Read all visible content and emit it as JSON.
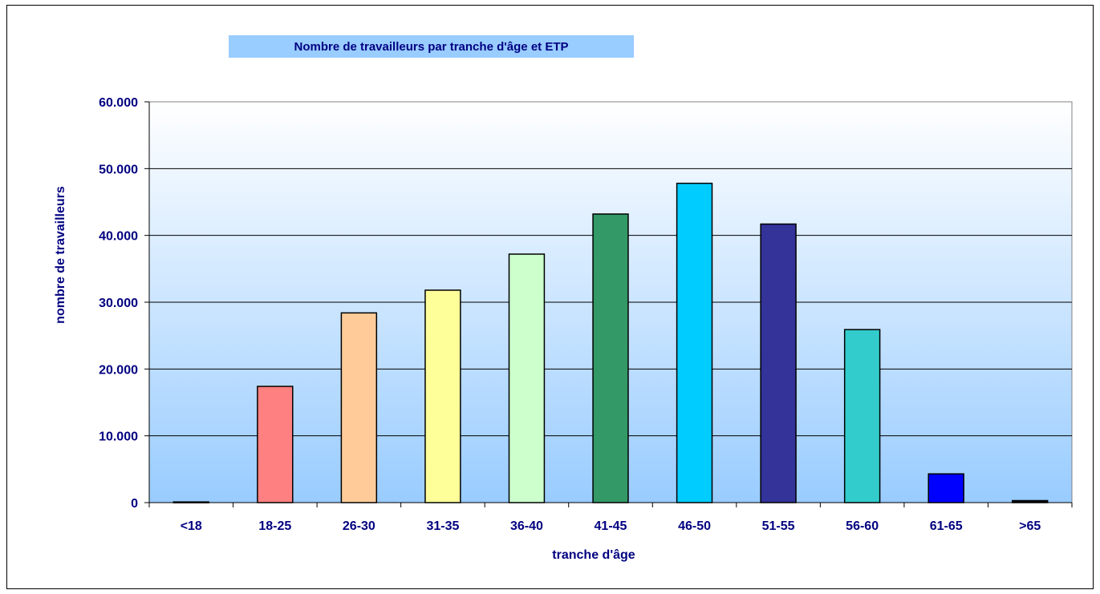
{
  "chart_data": {
    "type": "bar",
    "title": "Nombre de travailleurs par tranche d'âge et ETP",
    "xlabel": "tranche d'âge",
    "ylabel": "nombre de travailleurs",
    "categories": [
      "<18",
      "18-25",
      "26-30",
      "31-35",
      "36-40",
      "41-45",
      "46-50",
      "51-55",
      "56-60",
      "61-65",
      ">65"
    ],
    "values": [
      100,
      17400,
      28400,
      31800,
      37200,
      43200,
      47800,
      41700,
      25900,
      4300,
      300
    ],
    "colors": [
      "#000080",
      "#ff8080",
      "#ffcc99",
      "#ffff99",
      "#ccffcc",
      "#339966",
      "#00ccff",
      "#333399",
      "#33cccc",
      "#0000ff",
      "#000000"
    ],
    "ylim": [
      0,
      60000
    ],
    "yticks": [
      0,
      10000,
      20000,
      30000,
      40000,
      50000,
      60000
    ],
    "ytick_labels": [
      "0",
      "10.000",
      "20.000",
      "30.000",
      "40.000",
      "50.000",
      "60.000"
    ],
    "grid": true,
    "legend": "none"
  }
}
